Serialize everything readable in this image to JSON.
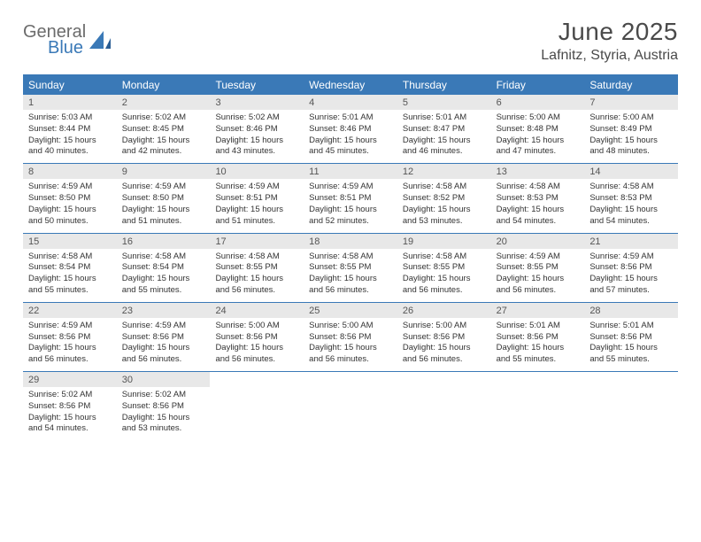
{
  "header": {
    "logo_general": "General",
    "logo_blue": "Blue",
    "month_title": "June 2025",
    "location": "Lafnitz, Styria, Austria"
  },
  "colors": {
    "header_bar": "#3a79b7",
    "daynum_bg": "#e8e8e8",
    "text": "#333333",
    "background": "#ffffff"
  },
  "days_of_week": [
    "Sunday",
    "Monday",
    "Tuesday",
    "Wednesday",
    "Thursday",
    "Friday",
    "Saturday"
  ],
  "weeks": [
    [
      {
        "n": "1",
        "sunrise": "Sunrise: 5:03 AM",
        "sunset": "Sunset: 8:44 PM",
        "daylight": "Daylight: 15 hours and 40 minutes."
      },
      {
        "n": "2",
        "sunrise": "Sunrise: 5:02 AM",
        "sunset": "Sunset: 8:45 PM",
        "daylight": "Daylight: 15 hours and 42 minutes."
      },
      {
        "n": "3",
        "sunrise": "Sunrise: 5:02 AM",
        "sunset": "Sunset: 8:46 PM",
        "daylight": "Daylight: 15 hours and 43 minutes."
      },
      {
        "n": "4",
        "sunrise": "Sunrise: 5:01 AM",
        "sunset": "Sunset: 8:46 PM",
        "daylight": "Daylight: 15 hours and 45 minutes."
      },
      {
        "n": "5",
        "sunrise": "Sunrise: 5:01 AM",
        "sunset": "Sunset: 8:47 PM",
        "daylight": "Daylight: 15 hours and 46 minutes."
      },
      {
        "n": "6",
        "sunrise": "Sunrise: 5:00 AM",
        "sunset": "Sunset: 8:48 PM",
        "daylight": "Daylight: 15 hours and 47 minutes."
      },
      {
        "n": "7",
        "sunrise": "Sunrise: 5:00 AM",
        "sunset": "Sunset: 8:49 PM",
        "daylight": "Daylight: 15 hours and 48 minutes."
      }
    ],
    [
      {
        "n": "8",
        "sunrise": "Sunrise: 4:59 AM",
        "sunset": "Sunset: 8:50 PM",
        "daylight": "Daylight: 15 hours and 50 minutes."
      },
      {
        "n": "9",
        "sunrise": "Sunrise: 4:59 AM",
        "sunset": "Sunset: 8:50 PM",
        "daylight": "Daylight: 15 hours and 51 minutes."
      },
      {
        "n": "10",
        "sunrise": "Sunrise: 4:59 AM",
        "sunset": "Sunset: 8:51 PM",
        "daylight": "Daylight: 15 hours and 51 minutes."
      },
      {
        "n": "11",
        "sunrise": "Sunrise: 4:59 AM",
        "sunset": "Sunset: 8:51 PM",
        "daylight": "Daylight: 15 hours and 52 minutes."
      },
      {
        "n": "12",
        "sunrise": "Sunrise: 4:58 AM",
        "sunset": "Sunset: 8:52 PM",
        "daylight": "Daylight: 15 hours and 53 minutes."
      },
      {
        "n": "13",
        "sunrise": "Sunrise: 4:58 AM",
        "sunset": "Sunset: 8:53 PM",
        "daylight": "Daylight: 15 hours and 54 minutes."
      },
      {
        "n": "14",
        "sunrise": "Sunrise: 4:58 AM",
        "sunset": "Sunset: 8:53 PM",
        "daylight": "Daylight: 15 hours and 54 minutes."
      }
    ],
    [
      {
        "n": "15",
        "sunrise": "Sunrise: 4:58 AM",
        "sunset": "Sunset: 8:54 PM",
        "daylight": "Daylight: 15 hours and 55 minutes."
      },
      {
        "n": "16",
        "sunrise": "Sunrise: 4:58 AM",
        "sunset": "Sunset: 8:54 PM",
        "daylight": "Daylight: 15 hours and 55 minutes."
      },
      {
        "n": "17",
        "sunrise": "Sunrise: 4:58 AM",
        "sunset": "Sunset: 8:55 PM",
        "daylight": "Daylight: 15 hours and 56 minutes."
      },
      {
        "n": "18",
        "sunrise": "Sunrise: 4:58 AM",
        "sunset": "Sunset: 8:55 PM",
        "daylight": "Daylight: 15 hours and 56 minutes."
      },
      {
        "n": "19",
        "sunrise": "Sunrise: 4:58 AM",
        "sunset": "Sunset: 8:55 PM",
        "daylight": "Daylight: 15 hours and 56 minutes."
      },
      {
        "n": "20",
        "sunrise": "Sunrise: 4:59 AM",
        "sunset": "Sunset: 8:55 PM",
        "daylight": "Daylight: 15 hours and 56 minutes."
      },
      {
        "n": "21",
        "sunrise": "Sunrise: 4:59 AM",
        "sunset": "Sunset: 8:56 PM",
        "daylight": "Daylight: 15 hours and 57 minutes."
      }
    ],
    [
      {
        "n": "22",
        "sunrise": "Sunrise: 4:59 AM",
        "sunset": "Sunset: 8:56 PM",
        "daylight": "Daylight: 15 hours and 56 minutes."
      },
      {
        "n": "23",
        "sunrise": "Sunrise: 4:59 AM",
        "sunset": "Sunset: 8:56 PM",
        "daylight": "Daylight: 15 hours and 56 minutes."
      },
      {
        "n": "24",
        "sunrise": "Sunrise: 5:00 AM",
        "sunset": "Sunset: 8:56 PM",
        "daylight": "Daylight: 15 hours and 56 minutes."
      },
      {
        "n": "25",
        "sunrise": "Sunrise: 5:00 AM",
        "sunset": "Sunset: 8:56 PM",
        "daylight": "Daylight: 15 hours and 56 minutes."
      },
      {
        "n": "26",
        "sunrise": "Sunrise: 5:00 AM",
        "sunset": "Sunset: 8:56 PM",
        "daylight": "Daylight: 15 hours and 56 minutes."
      },
      {
        "n": "27",
        "sunrise": "Sunrise: 5:01 AM",
        "sunset": "Sunset: 8:56 PM",
        "daylight": "Daylight: 15 hours and 55 minutes."
      },
      {
        "n": "28",
        "sunrise": "Sunrise: 5:01 AM",
        "sunset": "Sunset: 8:56 PM",
        "daylight": "Daylight: 15 hours and 55 minutes."
      }
    ],
    [
      {
        "n": "29",
        "sunrise": "Sunrise: 5:02 AM",
        "sunset": "Sunset: 8:56 PM",
        "daylight": "Daylight: 15 hours and 54 minutes."
      },
      {
        "n": "30",
        "sunrise": "Sunrise: 5:02 AM",
        "sunset": "Sunset: 8:56 PM",
        "daylight": "Daylight: 15 hours and 53 minutes."
      },
      null,
      null,
      null,
      null,
      null
    ]
  ]
}
